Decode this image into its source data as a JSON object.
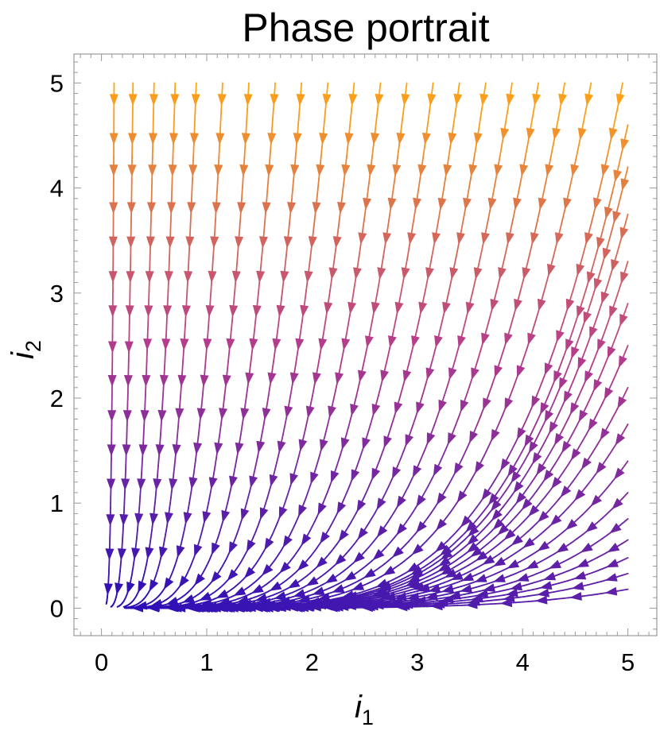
{
  "chart_data": {
    "type": "streamplot",
    "title": "Phase portrait",
    "xlabel": {
      "main": "i",
      "sub": "1"
    },
    "ylabel": {
      "main": "i",
      "sub": "2"
    },
    "xlim": [
      -0.27,
      5.27
    ],
    "ylim": [
      -0.27,
      5.27
    ],
    "xticks": [
      0,
      1,
      2,
      3,
      4,
      5
    ],
    "yticks": [
      0,
      1,
      2,
      3,
      4,
      5
    ],
    "grid": false,
    "vector_field": {
      "di1_dt": "-0.2*i1",
      "di2_dt": "-i2"
    },
    "color_scale": {
      "low": "#2a0fb8",
      "mid": "#b43c8c",
      "high": "#ffa514"
    },
    "streamlines": [
      [
        0.12,
        5.0
      ],
      [
        0.3,
        5.0
      ],
      [
        0.5,
        5.0
      ],
      [
        0.7,
        5.0
      ],
      [
        0.9,
        5.0
      ],
      [
        1.15,
        5.0
      ],
      [
        1.4,
        5.0
      ],
      [
        1.65,
        5.0
      ],
      [
        1.9,
        5.0
      ],
      [
        2.15,
        5.0
      ],
      [
        2.4,
        5.0
      ],
      [
        2.65,
        5.0
      ],
      [
        2.9,
        5.0
      ],
      [
        3.15,
        5.0
      ],
      [
        3.4,
        5.0
      ],
      [
        3.65,
        5.0
      ],
      [
        3.9,
        5.0
      ],
      [
        4.15,
        5.0
      ],
      [
        4.4,
        5.0
      ],
      [
        4.65,
        5.0
      ],
      [
        4.95,
        5.0
      ],
      [
        5.0,
        4.6
      ],
      [
        5.0,
        4.2
      ],
      [
        5.0,
        3.75
      ],
      [
        5.0,
        3.3
      ],
      [
        5.0,
        2.9
      ],
      [
        5.0,
        2.5
      ],
      [
        5.0,
        2.1
      ],
      [
        5.0,
        1.75
      ],
      [
        5.0,
        1.4
      ],
      [
        5.0,
        1.1
      ],
      [
        5.0,
        0.85
      ],
      [
        5.0,
        0.65
      ],
      [
        5.0,
        0.48
      ],
      [
        5.0,
        0.33
      ],
      [
        5.0,
        0.18
      ]
    ]
  }
}
